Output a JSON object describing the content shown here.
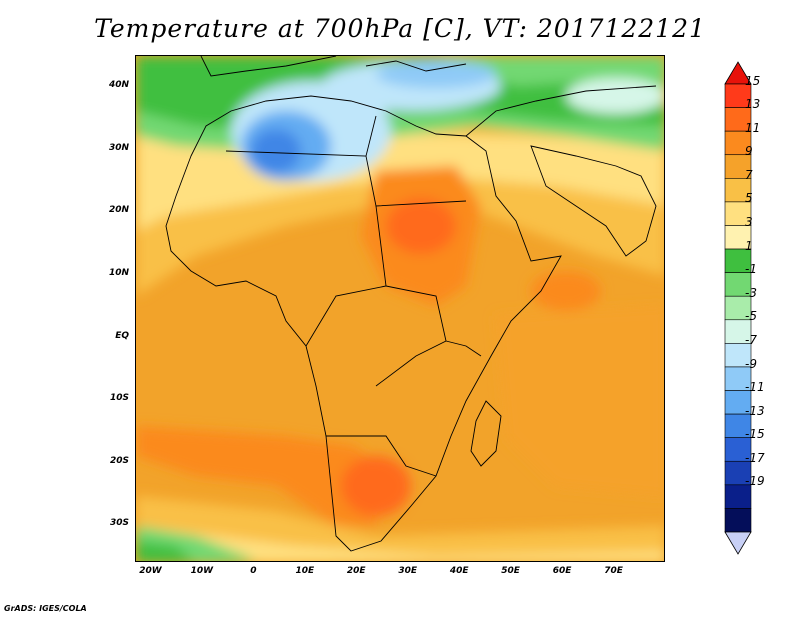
{
  "title": "Temperature at 700hPa [C], VT: 2017122121",
  "credit": "GrADS: IGES/COLA",
  "lat_labels": [
    "40N",
    "30N",
    "20N",
    "10N",
    "EQ",
    "10S",
    "20S",
    "30S"
  ],
  "lat_values": [
    40,
    30,
    20,
    10,
    0,
    -10,
    -20,
    -30
  ],
  "lon_labels": [
    "20W",
    "10W",
    "0",
    "10E",
    "20E",
    "30E",
    "40E",
    "50E",
    "60E",
    "70E"
  ],
  "lon_values": [
    -20,
    -10,
    0,
    10,
    20,
    30,
    40,
    50,
    60,
    70
  ],
  "map_extent": {
    "lon_min": -23,
    "lon_max": 80,
    "lat_min": -36,
    "lat_max": 45
  },
  "colorbar": {
    "labels": [
      "15",
      "13",
      "11",
      "9",
      "7",
      "5",
      "3",
      "1",
      "-1",
      "-3",
      "-5",
      "-7",
      "-9",
      "-11",
      "-13",
      "-15",
      "-17",
      "-19"
    ],
    "colors": [
      "#ff3a1a",
      "#ff6a1a",
      "#fb8a1e",
      "#f5a22a",
      "#f9c046",
      "#ffe080",
      "#fff2b0",
      "#3fbf3f",
      "#72d872",
      "#a9ecaa",
      "#d6f6e8",
      "#bfe6fa",
      "#8fcaf7",
      "#63acf2",
      "#3f86e6",
      "#2a60d4",
      "#1a40b4",
      "#0a1f8a",
      "#040e5a"
    ],
    "top_arrow_color": "#e8120a",
    "bottom_arrow_color": "#c8d0f6"
  }
}
